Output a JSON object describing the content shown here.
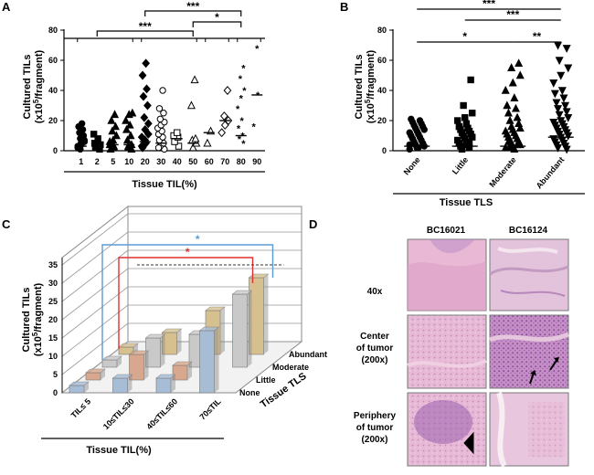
{
  "panels": {
    "a": "A",
    "b": "B",
    "c": "C",
    "d": "D"
  },
  "chart_data": [
    {
      "id": "A",
      "type": "scatter",
      "ylabel_line1": "Cultured TILs",
      "ylabel_line2": "(x10",
      "ylabel_sup": "5",
      "ylabel_tail": "/fragment)",
      "xlabel": "Tissue TIL(%)",
      "ylim": [
        0,
        80
      ],
      "yticks": [
        0,
        20,
        40,
        60,
        80
      ],
      "categories": [
        "1",
        "2",
        "5",
        "10",
        "20",
        "30",
        "40",
        "50",
        "60",
        "70",
        "80",
        "90"
      ],
      "markers": [
        "circle",
        "square",
        "triangle",
        "triangle",
        "diamond",
        "open-circle",
        "open-square",
        "open-triangle",
        "open-triangle",
        "open-diamond",
        "asterisk",
        "asterisk"
      ],
      "filled": [
        true,
        true,
        true,
        true,
        true,
        false,
        false,
        false,
        false,
        false,
        true,
        true
      ],
      "medians": [
        3,
        3,
        4,
        4,
        6,
        5,
        8,
        5,
        12,
        20,
        10,
        37
      ],
      "points": [
        [
          2,
          4,
          6,
          8,
          10,
          12,
          14,
          16,
          18,
          3,
          5,
          7,
          1
        ],
        [
          1,
          2,
          3,
          5,
          8,
          11,
          2,
          4
        ],
        [
          2,
          4,
          7,
          10,
          13,
          16,
          20,
          24,
          1,
          3,
          6
        ],
        [
          2,
          4,
          7,
          10,
          14,
          17,
          20,
          24,
          25,
          3,
          1
        ],
        [
          2,
          5,
          9,
          14,
          18,
          22,
          30,
          36,
          41,
          50,
          58,
          3,
          7,
          11
        ],
        [
          1,
          3,
          5,
          7,
          9,
          11,
          13,
          15,
          17,
          19,
          21,
          25,
          28,
          40,
          2
        ],
        [
          3,
          6,
          9,
          10,
          12
        ],
        [
          2,
          5,
          7,
          8,
          30,
          47
        ],
        [
          5,
          13
        ],
        [
          12,
          17,
          20,
          23,
          40
        ],
        [
          5,
          8,
          10,
          15,
          20,
          28,
          35,
          40,
          48,
          55
        ],
        [
          37,
          16,
          68
        ]
      ],
      "brackets": [
        {
          "label": "***"
        },
        {
          "label": "*"
        },
        {
          "label": "***"
        }
      ]
    },
    {
      "id": "B",
      "type": "scatter",
      "ylabel_line1": "Cultured TILs",
      "ylabel_line2": "(x10",
      "ylabel_sup": "5",
      "ylabel_tail": "/fragment)",
      "xlabel": "Tissue TLS",
      "ylim": [
        0,
        80
      ],
      "yticks": [
        0,
        20,
        40,
        60,
        80
      ],
      "categories": [
        "None",
        "Little",
        "Moderate",
        "Abundant"
      ],
      "markers": [
        "circle",
        "square",
        "triangle",
        "triangle-down"
      ],
      "medians": [
        3,
        3,
        3,
        9
      ],
      "points": [
        [
          1,
          2,
          3,
          4,
          5,
          6,
          7,
          8,
          9,
          10,
          11,
          12,
          13,
          14,
          15,
          16,
          17,
          18,
          19,
          20,
          21,
          2,
          4
        ],
        [
          1,
          2,
          3,
          4,
          5,
          6,
          7,
          8,
          9,
          10,
          11,
          12,
          13,
          14,
          15,
          16,
          18,
          20,
          22,
          25,
          30,
          47,
          3,
          5
        ],
        [
          1,
          2,
          3,
          4,
          5,
          6,
          7,
          8,
          9,
          10,
          11,
          12,
          13,
          14,
          15,
          16,
          18,
          20,
          22,
          25,
          28,
          30,
          35,
          40,
          45,
          50,
          55,
          58,
          2,
          4,
          6
        ],
        [
          1,
          2,
          3,
          4,
          5,
          6,
          7,
          8,
          9,
          10,
          11,
          12,
          13,
          14,
          15,
          16,
          17,
          18,
          19,
          20,
          22,
          24,
          26,
          28,
          30,
          32,
          35,
          38,
          40,
          45,
          50,
          55,
          60,
          68,
          70,
          3
        ]
      ],
      "brackets": [
        {
          "label": "***"
        },
        {
          "label": "***"
        },
        {
          "label": "*"
        },
        {
          "label": "**"
        }
      ]
    },
    {
      "id": "C",
      "type": "bar",
      "ylabel_line1": "Cultured TILs",
      "ylabel_line2": "(x10",
      "ylabel_sup": "5",
      "ylabel_tail": "/fragment)",
      "xlabel": "Tissue TIL(%)",
      "zlabel": "Tissue TLS",
      "ylim": [
        0,
        35
      ],
      "yticks": [
        0,
        5,
        10,
        15,
        20,
        25,
        30,
        35
      ],
      "categories": [
        "TIL≤ 5",
        "10≤TIL≤30",
        "40≤TIL≤60",
        "70≤TIL"
      ],
      "depth_categories": [
        "None",
        "Little",
        "Moderate",
        "Abundant"
      ],
      "series": [
        {
          "name": "None",
          "color": "#a7bdd6",
          "values": [
            2,
            4,
            4,
            17
          ]
        },
        {
          "name": "Little",
          "color": "#d8a88e",
          "values": [
            2,
            7,
            4,
            0
          ]
        },
        {
          "name": "Moderate",
          "color": "#c9c9c9",
          "values": [
            2,
            8,
            9,
            20
          ]
        },
        {
          "name": "Abundant",
          "color": "#d6c08e",
          "values": [
            2,
            6,
            12,
            21
          ]
        }
      ],
      "significance": [
        {
          "label": "*",
          "color": "#5b9bd5"
        },
        {
          "label": "*",
          "color": "#e03030"
        }
      ]
    }
  ],
  "panel_d": {
    "columns": [
      "BC16021",
      "BC16124"
    ],
    "rows": [
      {
        "line1": "40x",
        "line2": "",
        "line3": ""
      },
      {
        "line1": "Center",
        "line2": "of tumor",
        "line3": "(200x)"
      },
      {
        "line1": "Periphery",
        "line2": "of tumor",
        "line3": "(200x)"
      }
    ]
  }
}
